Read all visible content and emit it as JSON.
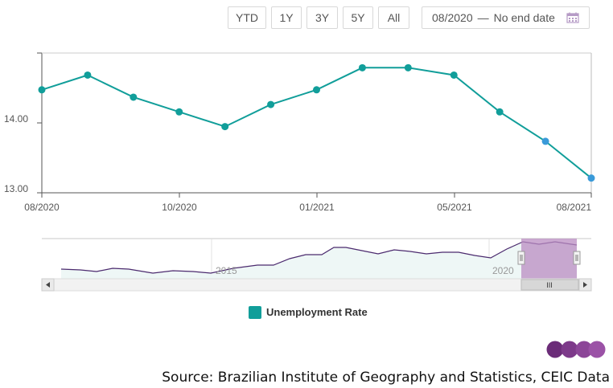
{
  "toolbar": {
    "ranges": [
      "YTD",
      "1Y",
      "3Y",
      "5Y",
      "All"
    ],
    "date_from": "08/2020",
    "date_sep": "—",
    "date_to": "No end date"
  },
  "chart_data": {
    "type": "line",
    "title": "",
    "xlabel": "",
    "ylabel": "",
    "ylim": [
      13.0,
      14.9
    ],
    "y_ticks": [
      "13.00",
      "14.00"
    ],
    "x_ticks": [
      "08/2020",
      "10/2020",
      "01/2021",
      "05/2021",
      "08/2021"
    ],
    "x": [
      "08/2020",
      "09/2020",
      "10/2020",
      "11/2020",
      "12/2020",
      "01/2021",
      "02/2021",
      "03/2021",
      "04/2021",
      "05/2021",
      "06/2021",
      "07/2021",
      "08/2021"
    ],
    "series": [
      {
        "name": "Unemployment Rate",
        "color": "#119e9a",
        "values": [
          14.4,
          14.6,
          14.3,
          14.1,
          13.9,
          14.2,
          14.4,
          14.7,
          14.7,
          14.6,
          14.1,
          13.7,
          13.2
        ],
        "highlight_color": "#3a9ad9"
      }
    ],
    "grid": false,
    "legend": "bottom-center"
  },
  "navigator": {
    "labels": [
      "2015",
      "2020"
    ],
    "scroll_thumb_label": "III",
    "line_color": "#4b2a6e",
    "selection_color": "#b98cc1"
  },
  "legend": {
    "label": "Unemployment Rate"
  },
  "logo": {
    "text": "CEIC",
    "color": "#6b2c78"
  },
  "source": "Source: Brazilian Institute of Geography and Statistics, CEIC Data"
}
